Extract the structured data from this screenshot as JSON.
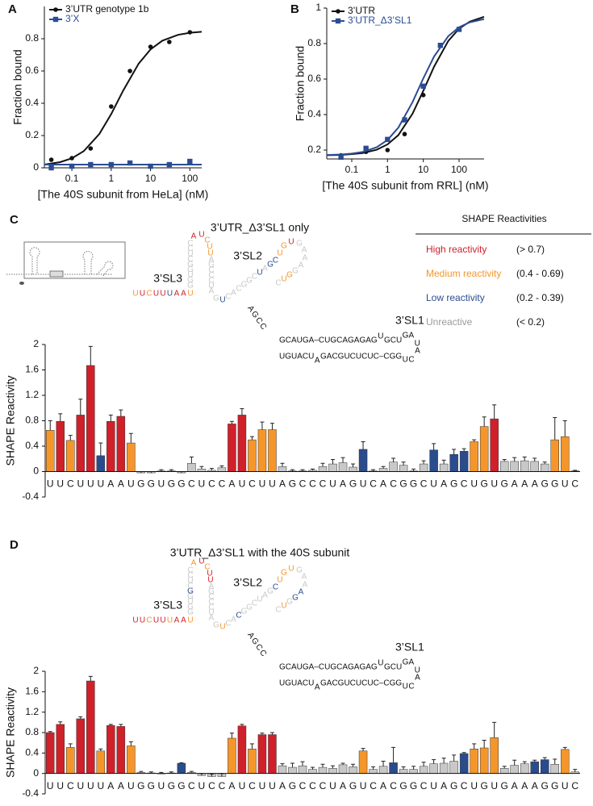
{
  "chart_data": [
    {
      "type": "scatter",
      "panel": "A",
      "xlabel": "[The 40S subunit from HeLa] (nM)",
      "ylabel": "Fraction bound",
      "xscale": "log",
      "xlim": [
        0.02,
        200
      ],
      "xticks": [
        0.1,
        1,
        10,
        100
      ],
      "ylim": [
        0,
        1
      ],
      "yticks": [
        0,
        0.2,
        0.4,
        0.6,
        0.8
      ],
      "legend": "upper left",
      "series": [
        {
          "name": "3’UTR genotype 1b",
          "color": "#111111",
          "marker": "circle",
          "x": [
            0.03,
            0.1,
            0.3,
            1,
            3,
            10,
            30,
            100
          ],
          "values": [
            0.05,
            0.06,
            0.12,
            0.38,
            0.6,
            0.75,
            0.78,
            0.84
          ],
          "fit": {
            "x": [
              0.02,
              0.05,
              0.1,
              0.2,
              0.5,
              1,
              2,
              5,
              10,
              20,
              50,
              100,
              200
            ],
            "values": [
              0.02,
              0.035,
              0.059,
              0.103,
              0.21,
              0.333,
              0.477,
              0.646,
              0.734,
              0.788,
              0.824,
              0.837,
              0.843
            ]
          }
        },
        {
          "name": "3’X",
          "color": "#2b4c93",
          "marker": "square",
          "x": [
            0.03,
            0.1,
            0.3,
            1,
            3,
            10,
            30,
            100
          ],
          "values": [
            0.0,
            0.01,
            0.02,
            0.02,
            0.03,
            0.01,
            0.02,
            0.04
          ],
          "fit": {
            "x": [
              0.02,
              200
            ],
            "values": [
              0.02,
              0.02
            ]
          }
        }
      ]
    },
    {
      "type": "scatter",
      "panel": "B",
      "xlabel": "[The 40S subunit from RRL] (nM)",
      "ylabel": "Fraction bound",
      "xscale": "log",
      "xlim": [
        0.02,
        500
      ],
      "xticks": [
        0.1,
        1,
        10,
        100
      ],
      "ylim": [
        0.15,
        1
      ],
      "yticks": [
        0.2,
        0.4,
        0.6,
        0.8,
        1
      ],
      "legend": "upper left",
      "series": [
        {
          "name": "3’UTR",
          "color": "#111111",
          "marker": "circle",
          "x": [
            0.05,
            0.25,
            1,
            3,
            10,
            100
          ],
          "values": [
            0.17,
            0.19,
            0.2,
            0.29,
            0.51,
            0.88
          ],
          "fit": {
            "x": [
              0.02,
              0.05,
              0.1,
              0.2,
              0.5,
              1,
              2,
              5,
              10,
              20,
              50,
              100,
              200,
              500
            ],
            "values": [
              0.171,
              0.173,
              0.177,
              0.183,
              0.202,
              0.232,
              0.284,
              0.405,
              0.534,
              0.67,
              0.815,
              0.884,
              0.924,
              0.951
            ]
          }
        },
        {
          "name": "3’UTR_Δ3’SL1",
          "color": "#2b4c93",
          "marker": "square",
          "x": [
            0.05,
            0.25,
            1,
            3,
            10,
            30,
            100
          ],
          "values": [
            0.16,
            0.21,
            0.26,
            0.37,
            0.56,
            0.79,
            0.88
          ],
          "fit": {
            "x": [
              0.02,
              0.05,
              0.1,
              0.2,
              0.5,
              1,
              2,
              5,
              10,
              20,
              50,
              100,
              200,
              500
            ],
            "values": [
              0.172,
              0.175,
              0.18,
              0.189,
              0.216,
              0.257,
              0.326,
              0.47,
              0.604,
              0.727,
              0.842,
              0.892,
              0.92,
              0.938
            ]
          }
        }
      ]
    },
    {
      "type": "bar",
      "panel": "C",
      "title": "3’UTR_Δ3’SL1 only",
      "ylabel": "SHAPE Reactivity",
      "ylim": [
        -0.4,
        2
      ],
      "yticks": [
        -0.4,
        0,
        0.4,
        0.8,
        1.2,
        1.6,
        2
      ],
      "categories": [
        "U",
        "U",
        "C",
        "U",
        "U",
        "U",
        "A",
        "A",
        "U",
        "G",
        "G",
        "U",
        "G",
        "G",
        "C",
        "U",
        "C",
        "C",
        "A",
        "U",
        "C",
        "U",
        "U",
        "A",
        "G",
        "C",
        "C",
        "C",
        "U",
        "A",
        "G",
        "U",
        "C",
        "A",
        "C",
        "G",
        "G",
        "C",
        "U",
        "A",
        "G",
        "C",
        "U",
        "G",
        "U",
        "G",
        "A",
        "A",
        "A",
        "G",
        "G",
        "U",
        "C"
      ],
      "values": [
        0.65,
        0.79,
        0.49,
        0.89,
        1.67,
        0.25,
        0.79,
        0.87,
        0.45,
        -0.02,
        -0.02,
        0.01,
        0.01,
        -0.02,
        0.13,
        0.04,
        0.02,
        0.06,
        0.75,
        0.89,
        0.5,
        0.66,
        0.66,
        0.08,
        0.01,
        0.01,
        0.02,
        0.08,
        0.12,
        0.14,
        0.07,
        0.35,
        0.01,
        0.05,
        0.15,
        0.1,
        0.01,
        0.12,
        0.34,
        0.12,
        0.27,
        0.32,
        0.47,
        0.71,
        0.83,
        0.16,
        0.16,
        0.17,
        0.16,
        0.12,
        0.5,
        0.55,
        0.01
      ],
      "errors": [
        0.15,
        0.12,
        0.08,
        0.25,
        0.3,
        0.2,
        0.1,
        0.1,
        0.15,
        0.02,
        0.02,
        0.02,
        0.02,
        0.02,
        0.1,
        0.04,
        0.03,
        0.03,
        0.04,
        0.1,
        0.05,
        0.12,
        0.1,
        0.05,
        0.02,
        0.02,
        0.02,
        0.05,
        0.07,
        0.08,
        0.05,
        0.12,
        0.02,
        0.03,
        0.06,
        0.05,
        0.03,
        0.05,
        0.1,
        0.06,
        0.08,
        0.04,
        0.03,
        0.15,
        0.22,
        0.03,
        0.06,
        0.06,
        0.05,
        0.03,
        0.35,
        0.25,
        0.01
      ],
      "colors": [
        "#f5962b",
        "#d0202a",
        "#f5962b",
        "#d0202a",
        "#d0202a",
        "#2a4c8d",
        "#d0202a",
        "#d0202a",
        "#f5962b",
        "#c8c8c8",
        "#c8c8c8",
        "#c8c8c8",
        "#c8c8c8",
        "#c8c8c8",
        "#c8c8c8",
        "#c8c8c8",
        "#c8c8c8",
        "#c8c8c8",
        "#d0202a",
        "#d0202a",
        "#f5962b",
        "#f5962b",
        "#f5962b",
        "#c8c8c8",
        "#c8c8c8",
        "#c8c8c8",
        "#c8c8c8",
        "#c8c8c8",
        "#c8c8c8",
        "#c8c8c8",
        "#c8c8c8",
        "#2a4c8d",
        "#c8c8c8",
        "#c8c8c8",
        "#c8c8c8",
        "#c8c8c8",
        "#c8c8c8",
        "#c8c8c8",
        "#2a4c8d",
        "#c8c8c8",
        "#2a4c8d",
        "#2a4c8d",
        "#f5962b",
        "#f5962b",
        "#d0202a",
        "#c8c8c8",
        "#c8c8c8",
        "#c8c8c8",
        "#c8c8c8",
        "#c8c8c8",
        "#f5962b",
        "#f5962b",
        "#c8c8c8"
      ]
    },
    {
      "type": "bar",
      "panel": "D",
      "title": "3’UTR_Δ3’SL1 with the 40S subunit",
      "ylabel": "SHAPE Reactivity",
      "ylim": [
        -0.4,
        2
      ],
      "yticks": [
        -0.4,
        0,
        0.4,
        0.8,
        1.2,
        1.6,
        2
      ],
      "categories": [
        "U",
        "U",
        "C",
        "U",
        "U",
        "U",
        "A",
        "A",
        "U",
        "G",
        "G",
        "U",
        "G",
        "G",
        "C",
        "U",
        "C",
        "C",
        "A",
        "U",
        "C",
        "U",
        "U",
        "A",
        "G",
        "C",
        "C",
        "C",
        "U",
        "A",
        "G",
        "U",
        "C",
        "A",
        "C",
        "G",
        "G",
        "C",
        "U",
        "A",
        "G",
        "C",
        "U",
        "G",
        "U",
        "G",
        "A",
        "A",
        "A",
        "G",
        "G",
        "U",
        "C"
      ],
      "values": [
        0.8,
        0.96,
        0.51,
        1.07,
        1.81,
        0.44,
        0.94,
        0.92,
        0.54,
        0.02,
        0.01,
        0.0,
        0.01,
        0.2,
        0.02,
        -0.04,
        -0.06,
        -0.06,
        0.69,
        0.93,
        0.48,
        0.76,
        0.76,
        0.15,
        0.12,
        0.15,
        0.08,
        0.12,
        0.1,
        0.17,
        0.13,
        0.44,
        0.08,
        0.14,
        0.21,
        0.08,
        0.08,
        0.14,
        0.19,
        0.2,
        0.24,
        0.39,
        0.48,
        0.5,
        0.7,
        0.1,
        0.16,
        0.19,
        0.23,
        0.27,
        0.18,
        0.47,
        0.03
      ],
      "errors": [
        0.02,
        0.05,
        0.07,
        0.04,
        0.09,
        0.04,
        0.02,
        0.04,
        0.08,
        0.02,
        0.02,
        0.02,
        0.02,
        0.01,
        0.02,
        0.04,
        0.05,
        0.06,
        0.1,
        0.03,
        0.1,
        0.03,
        0.04,
        0.04,
        0.08,
        0.08,
        0.04,
        0.06,
        0.05,
        0.03,
        0.05,
        0.05,
        0.05,
        0.1,
        0.3,
        0.05,
        0.06,
        0.08,
        0.08,
        0.1,
        0.12,
        0.02,
        0.1,
        0.15,
        0.3,
        0.04,
        0.1,
        0.04,
        0.03,
        0.04,
        0.1,
        0.04,
        0.05
      ],
      "colors": [
        "#d0202a",
        "#d0202a",
        "#f5962b",
        "#d0202a",
        "#d0202a",
        "#f5962b",
        "#d0202a",
        "#d0202a",
        "#f5962b",
        "#c8c8c8",
        "#c8c8c8",
        "#c8c8c8",
        "#c8c8c8",
        "#2a4c8d",
        "#c8c8c8",
        "#c8c8c8",
        "#c8c8c8",
        "#c8c8c8",
        "#f5962b",
        "#d0202a",
        "#f5962b",
        "#d0202a",
        "#d0202a",
        "#c8c8c8",
        "#c8c8c8",
        "#c8c8c8",
        "#c8c8c8",
        "#c8c8c8",
        "#c8c8c8",
        "#c8c8c8",
        "#c8c8c8",
        "#f5962b",
        "#c8c8c8",
        "#c8c8c8",
        "#2a4c8d",
        "#c8c8c8",
        "#c8c8c8",
        "#c8c8c8",
        "#c8c8c8",
        "#c8c8c8",
        "#c8c8c8",
        "#2a4c8d",
        "#f5962b",
        "#f5962b",
        "#f5962b",
        "#c8c8c8",
        "#c8c8c8",
        "#c8c8c8",
        "#2a4c8d",
        "#2a4c8d",
        "#c8c8c8",
        "#f5962b",
        "#c8c8c8"
      ]
    }
  ],
  "shape_legend": {
    "title": "SHAPE Reactivities",
    "rows": [
      {
        "name": "High reactivity",
        "range": "(> 0.7)",
        "color": "#d0202a"
      },
      {
        "name": "Medium reactivity",
        "range": "(0.4 - 0.69)",
        "color": "#f5962b"
      },
      {
        "name": "Low reactivity",
        "range": "(0.2 - 0.39)",
        "color": "#2a4c8d"
      },
      {
        "name": "Unreactive",
        "range": "(< 0.2)",
        "color": "#9a9a9a"
      }
    ]
  },
  "structure": {
    "labels": [
      "3’SL3",
      "3’SL2",
      "3’SL1"
    ],
    "connector": "AGCC",
    "sl1_top": [
      "GCAUGA–CUGCAGAGAG",
      "U",
      "GCU",
      "GA",
      "U"
    ],
    "sl1_bottom": [
      "UGUACU",
      "A",
      "GACGUCUCUC–CGG",
      "U",
      "C",
      "A"
    ]
  }
}
